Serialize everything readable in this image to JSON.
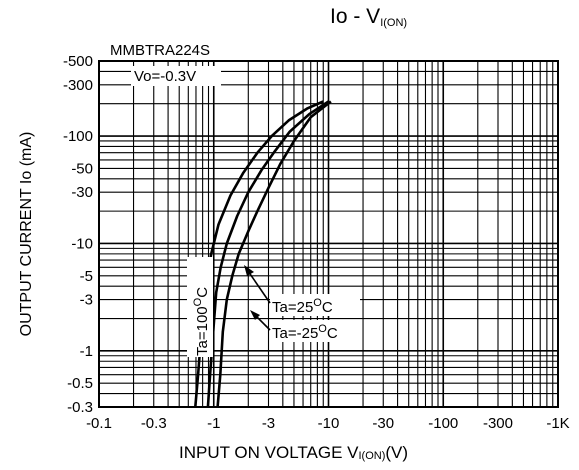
{
  "chart_data": {
    "type": "line",
    "title_main": "Io - V",
    "title_sub": "I(ON)",
    "part_number": "MMBTRA224S",
    "condition": "Vo=-0.3V",
    "xlabel_main": "INPUT ON VOLTAGE  V",
    "xlabel_sub": "I(ON)",
    "xlabel_unit": "(V)",
    "ylabel": "OUTPUT CURRENT  Io (mA)",
    "x_scale": "log",
    "y_scale": "log",
    "xlim": [
      -0.1,
      -1000
    ],
    "ylim": [
      -0.3,
      -500
    ],
    "grid": true,
    "x_ticks": [
      {
        "value": -0.1,
        "label": "-0.1"
      },
      {
        "value": -0.3,
        "label": "-0.3"
      },
      {
        "value": -1,
        "label": "-1"
      },
      {
        "value": -3,
        "label": "-3"
      },
      {
        "value": -10,
        "label": "-10"
      },
      {
        "value": -30,
        "label": "-30"
      },
      {
        "value": -100,
        "label": "-100"
      },
      {
        "value": -300,
        "label": "-300"
      },
      {
        "value": -1000,
        "label": "-1K"
      }
    ],
    "y_ticks": [
      {
        "value": -500,
        "label": "-500"
      },
      {
        "value": -300,
        "label": "-300"
      },
      {
        "value": -100,
        "label": "-100"
      },
      {
        "value": -50,
        "label": "-50"
      },
      {
        "value": -30,
        "label": "-30"
      },
      {
        "value": -10,
        "label": "-10"
      },
      {
        "value": -5,
        "label": "-5"
      },
      {
        "value": -3,
        "label": "-3"
      },
      {
        "value": -1,
        "label": "-1"
      },
      {
        "value": -0.5,
        "label": "-0.5"
      },
      {
        "value": -0.3,
        "label": "-0.3"
      }
    ],
    "series": [
      {
        "name": "Ta=100°C",
        "points": [
          [
            -0.69,
            -0.3
          ],
          [
            -0.73,
            -0.6
          ],
          [
            -0.78,
            -1.5
          ],
          [
            -0.85,
            -4
          ],
          [
            -0.95,
            -8
          ],
          [
            -1.1,
            -15
          ],
          [
            -1.4,
            -28
          ],
          [
            -1.8,
            -45
          ],
          [
            -2.4,
            -70
          ],
          [
            -3.2,
            -100
          ],
          [
            -4.5,
            -140
          ],
          [
            -6.5,
            -180
          ],
          [
            -9,
            -210
          ]
        ]
      },
      {
        "name": "Ta=25°C",
        "points": [
          [
            -0.89,
            -0.3
          ],
          [
            -0.93,
            -0.6
          ],
          [
            -0.99,
            -1.5
          ],
          [
            -1.05,
            -3.5
          ],
          [
            -1.15,
            -6
          ],
          [
            -1.3,
            -10
          ],
          [
            -1.6,
            -18
          ],
          [
            -2,
            -30
          ],
          [
            -2.6,
            -48
          ],
          [
            -3.4,
            -72
          ],
          [
            -4.6,
            -110
          ],
          [
            -6.8,
            -160
          ],
          [
            -10,
            -210
          ]
        ]
      },
      {
        "name": "Ta=-25°C",
        "points": [
          [
            -1.08,
            -0.3
          ],
          [
            -1.14,
            -0.6
          ],
          [
            -1.2,
            -1.5
          ],
          [
            -1.3,
            -3
          ],
          [
            -1.45,
            -5
          ],
          [
            -1.65,
            -8
          ],
          [
            -2,
            -13
          ],
          [
            -2.4,
            -20
          ],
          [
            -3,
            -33
          ],
          [
            -3.8,
            -55
          ],
          [
            -5,
            -90
          ],
          [
            -7,
            -150
          ],
          [
            -10.5,
            -210
          ]
        ]
      }
    ],
    "annotations": [
      {
        "label_main": "Ta=100",
        "label_sup": "O",
        "label_tail": "C"
      },
      {
        "label_main": "Ta=25",
        "label_sup": "O",
        "label_tail": "C"
      },
      {
        "label_main": "Ta=-25",
        "label_sup": "O",
        "label_tail": "C"
      }
    ],
    "colors": {
      "line": "#000000",
      "grid": "#000000",
      "background": "#ffffff"
    }
  }
}
